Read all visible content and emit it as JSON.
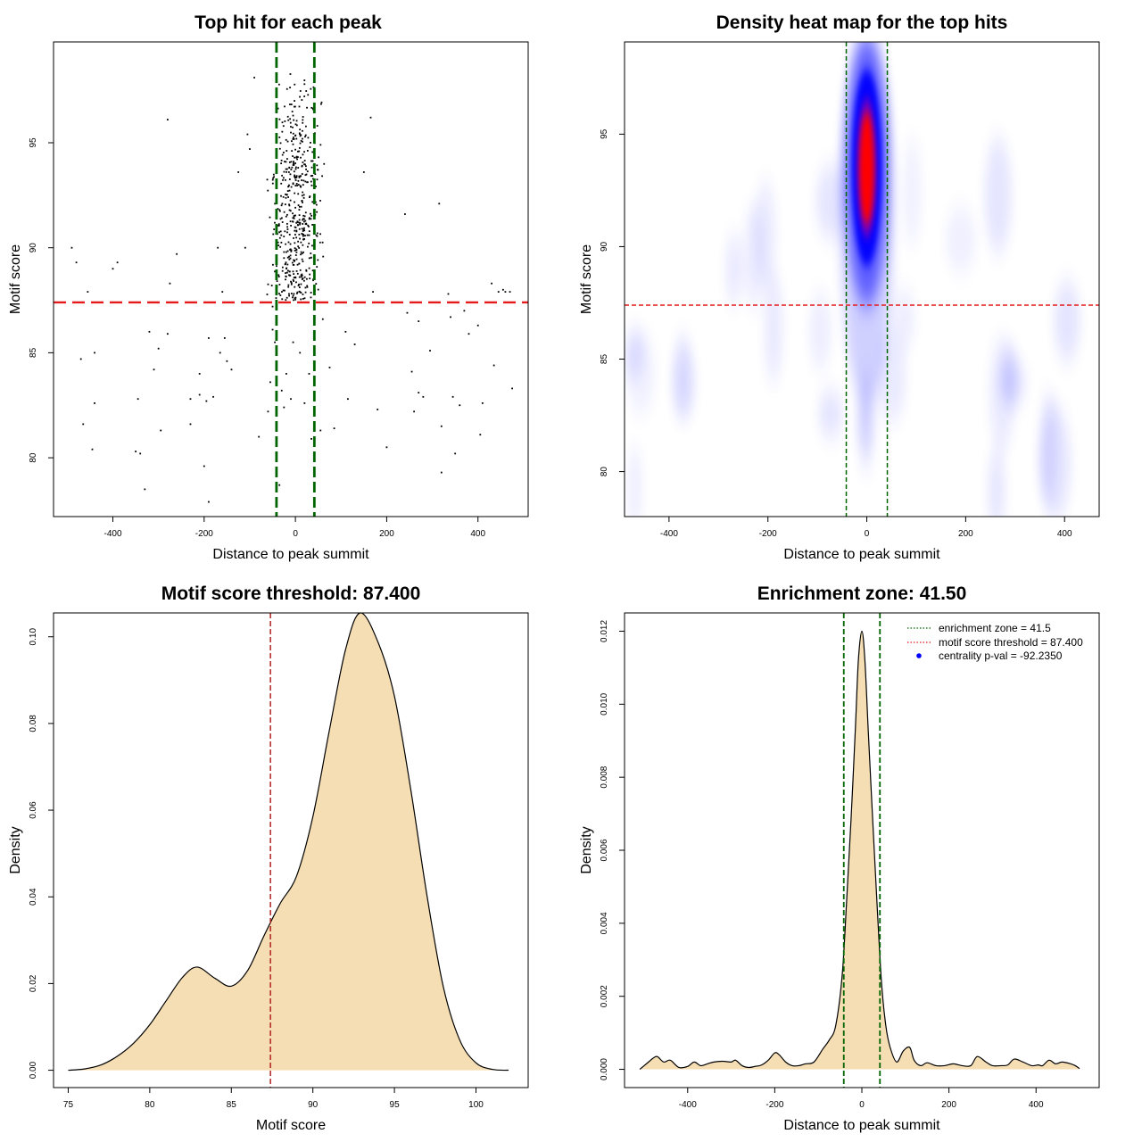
{
  "chart_data": [
    {
      "id": "scatter",
      "type": "scatter",
      "title": "Top hit for each peak",
      "xlabel": "Distance to peak summit",
      "ylabel": "Motif score",
      "xlim": [
        -530,
        510
      ],
      "ylim": [
        77.2,
        99.8
      ],
      "xticks": [
        "-400",
        "-200",
        "0",
        "200",
        "400"
      ],
      "yticks": [
        "80",
        "85",
        "90",
        "95"
      ],
      "x_tick_values": [
        -400,
        -200,
        0,
        200,
        400
      ],
      "y_tick_values": [
        80,
        85,
        90,
        95
      ],
      "hline": {
        "y": 87.4,
        "color": "#e41a1c"
      },
      "vlines": {
        "x": [
          -41.5,
          41.5
        ],
        "color": "#006400"
      },
      "point_color": "#000000",
      "points": [
        [
          -490,
          90.0
        ],
        [
          -480,
          89.3
        ],
        [
          -470,
          84.7
        ],
        [
          -465,
          81.6
        ],
        [
          -455,
          87.9
        ],
        [
          -440,
          85.0
        ],
        [
          -445,
          80.4
        ],
        [
          -440,
          82.6
        ],
        [
          -400,
          89.0
        ],
        [
          -390,
          89.3
        ],
        [
          -350,
          80.3
        ],
        [
          -340,
          80.2
        ],
        [
          -345,
          82.8
        ],
        [
          -330,
          78.5
        ],
        [
          -320,
          86.0
        ],
        [
          -310,
          84.2
        ],
        [
          -300,
          85.2
        ],
        [
          -295,
          81.3
        ],
        [
          -280,
          85.9
        ],
        [
          -275,
          88.3
        ],
        [
          -280,
          96.1
        ],
        [
          -260,
          89.7
        ],
        [
          -230,
          81.6
        ],
        [
          -230,
          82.8
        ],
        [
          -210,
          84.0
        ],
        [
          -210,
          83.0
        ],
        [
          -200,
          79.6
        ],
        [
          -195,
          82.7
        ],
        [
          -190,
          85.7
        ],
        [
          -190,
          77.9
        ],
        [
          -180,
          82.9
        ],
        [
          -170,
          90.0
        ],
        [
          -165,
          85.0
        ],
        [
          -160,
          87.9
        ],
        [
          -155,
          85.7
        ],
        [
          -150,
          84.6
        ],
        [
          -140,
          84.2
        ],
        [
          -125,
          93.6
        ],
        [
          -110,
          90.0
        ],
        [
          -105,
          95.4
        ],
        [
          -100,
          94.7
        ],
        [
          -90,
          98.1
        ],
        [
          -80,
          81.0
        ],
        [
          -60,
          82.2
        ],
        [
          -55,
          83.6
        ],
        [
          -50,
          87.2
        ],
        [
          -50,
          86.1
        ],
        [
          -45,
          85.5
        ],
        [
          -35,
          78.7
        ],
        [
          -30,
          83.2
        ],
        [
          -25,
          82.4
        ],
        [
          -20,
          84.0
        ],
        [
          -10,
          82.8
        ],
        [
          -5,
          85.5
        ],
        [
          10,
          85.0
        ],
        [
          20,
          82.6
        ],
        [
          30,
          84.0
        ],
        [
          35,
          80.9
        ],
        [
          55,
          81.3
        ],
        [
          60,
          86.6
        ],
        [
          75,
          84.3
        ],
        [
          85,
          81.4
        ],
        [
          110,
          86.0
        ],
        [
          115,
          82.8
        ],
        [
          130,
          85.4
        ],
        [
          150,
          93.6
        ],
        [
          165,
          96.2
        ],
        [
          170,
          87.9
        ],
        [
          180,
          82.3
        ],
        [
          200,
          80.5
        ],
        [
          240,
          91.6
        ],
        [
          245,
          86.9
        ],
        [
          255,
          84.1
        ],
        [
          260,
          82.2
        ],
        [
          270,
          86.5
        ],
        [
          270,
          83.1
        ],
        [
          280,
          82.9
        ],
        [
          295,
          85.1
        ],
        [
          315,
          92.1
        ],
        [
          320,
          79.3
        ],
        [
          320,
          81.5
        ],
        [
          335,
          87.8
        ],
        [
          340,
          86.7
        ],
        [
          345,
          82.9
        ],
        [
          350,
          80.2
        ],
        [
          360,
          82.5
        ],
        [
          370,
          87.0
        ],
        [
          380,
          85.9
        ],
        [
          400,
          86.3
        ],
        [
          405,
          81.1
        ],
        [
          410,
          82.6
        ],
        [
          430,
          88.3
        ],
        [
          435,
          84.4
        ],
        [
          445,
          87.9
        ],
        [
          455,
          88.0
        ],
        [
          460,
          87.9
        ],
        [
          470,
          87.9
        ],
        [
          475,
          83.3
        ]
      ]
    },
    {
      "id": "heatmap",
      "type": "heatmap",
      "title": "Density heat map for the top hits",
      "xlabel": "Distance to peak summit",
      "ylabel": "Motif score",
      "xlim": [
        -490,
        470
      ],
      "ylim": [
        78.0,
        99.1
      ],
      "xticks": [
        "-400",
        "-200",
        "0",
        "200",
        "400"
      ],
      "yticks": [
        "80",
        "85",
        "90",
        "95"
      ],
      "x_tick_values": [
        -400,
        -200,
        0,
        200,
        400
      ],
      "y_tick_values": [
        80,
        85,
        90,
        95
      ],
      "hline": {
        "y": 87.4,
        "color": "#e41a1c"
      },
      "vlines": {
        "x": [
          -41.5,
          41.5
        ],
        "color": "#006400"
      },
      "colors": [
        "#ffffff",
        "#0000ff",
        "#ff0000"
      ],
      "peak": {
        "x": 0,
        "y": 93.5
      }
    },
    {
      "id": "score_density",
      "type": "area",
      "title": "Motif score threshold: 87.400",
      "xlabel": "Motif score",
      "ylabel": "Density",
      "xlim": [
        74.1,
        103.2
      ],
      "ylim": [
        -0.004,
        0.1055
      ],
      "xticks": [
        "75",
        "80",
        "85",
        "90",
        "95",
        "100"
      ],
      "yticks": [
        "0.00",
        "0.02",
        "0.04",
        "0.06",
        "0.08",
        "0.10"
      ],
      "x_tick_values": [
        75,
        80,
        85,
        90,
        95,
        100
      ],
      "y_tick_values": [
        0,
        0.02,
        0.04,
        0.06,
        0.08,
        0.1
      ],
      "vline": {
        "x": 87.4,
        "color": "#b22222"
      },
      "fill": "#f5deb3",
      "x": [
        75,
        76,
        77,
        78,
        79,
        80,
        81,
        82,
        82.9,
        84,
        85,
        86,
        87,
        88,
        89,
        90,
        91,
        92,
        92.9,
        94,
        95,
        96,
        97,
        98,
        99,
        100,
        101,
        102
      ],
      "y": [
        0.0,
        0.0003,
        0.0012,
        0.0032,
        0.0062,
        0.0105,
        0.016,
        0.0214,
        0.0238,
        0.0212,
        0.0194,
        0.023,
        0.031,
        0.0385,
        0.0448,
        0.0585,
        0.0782,
        0.097,
        0.1055,
        0.0987,
        0.0863,
        0.0648,
        0.0402,
        0.0192,
        0.007,
        0.0017,
        0.0002,
        0.0
      ]
    },
    {
      "id": "distance_density",
      "type": "area",
      "title": "Enrichment zone: 41.50",
      "xlabel": "Distance to peak summit",
      "ylabel": "Density",
      "xlim": [
        -545,
        545
      ],
      "ylim": [
        -0.0005,
        0.0125
      ],
      "xticks": [
        "-400",
        "-200",
        "0",
        "200",
        "400"
      ],
      "yticks": [
        "0.000",
        "0.002",
        "0.004",
        "0.006",
        "0.008",
        "0.010",
        "0.012"
      ],
      "x_tick_values": [
        -400,
        -200,
        0,
        200,
        400
      ],
      "y_tick_values": [
        0,
        0.002,
        0.004,
        0.006,
        0.008,
        0.01,
        0.012
      ],
      "vlines": {
        "x": [
          -41.5,
          41.5
        ],
        "color": "#006400"
      },
      "fill": "#f5deb3",
      "legend_position": "top-right",
      "legend": [
        {
          "label": "enrichment zone = 41.5",
          "color": "#006400",
          "symbol": "dotted-line"
        },
        {
          "label": "motif score threshold = 87.400",
          "color": "#e41a1c",
          "symbol": "dotted-line"
        },
        {
          "label": "centrality p-val = -92.2350",
          "color": "#0000ff",
          "symbol": "point"
        }
      ],
      "x": [
        -510,
        -490,
        -480,
        -470,
        -455,
        -440,
        -420,
        -400,
        -385,
        -370,
        -355,
        -340,
        -320,
        -300,
        -290,
        -275,
        -260,
        -245,
        -230,
        -215,
        -200,
        -190,
        -175,
        -160,
        -145,
        -130,
        -110,
        -90,
        -75,
        -60,
        -45,
        -35,
        -25,
        -15,
        -8,
        0,
        7,
        15,
        25,
        35,
        45,
        55,
        65,
        80,
        95,
        110,
        120,
        135,
        150,
        170,
        190,
        210,
        230,
        250,
        265,
        285,
        300,
        320,
        335,
        350,
        370,
        390,
        405,
        415,
        430,
        445,
        460,
        480,
        490,
        500
      ],
      "y": [
        0.0,
        0.0002,
        0.0003,
        0.00035,
        0.0002,
        0.00025,
        5e-05,
        8e-05,
        0.0002,
        0.0001,
        0.00015,
        0.0002,
        0.00022,
        0.0002,
        0.00025,
        0.0001,
        5e-05,
        8e-05,
        0.00012,
        0.00025,
        0.00045,
        0.0004,
        0.0002,
        0.0001,
        0.0001,
        0.00015,
        0.0002,
        0.00055,
        0.0008,
        0.0012,
        0.0026,
        0.0046,
        0.0068,
        0.0093,
        0.0112,
        0.012,
        0.0112,
        0.0092,
        0.0068,
        0.0045,
        0.0024,
        0.0012,
        0.0006,
        0.0002,
        0.0005,
        0.0006,
        0.00025,
        0.0001,
        0.00018,
        0.0001,
        0.0001,
        0.00015,
        0.0001,
        0.0001,
        0.00035,
        0.0002,
        0.0001,
        0.0001,
        0.00012,
        0.00028,
        0.0002,
        0.0001,
        0.00012,
        0.0001,
        0.00025,
        0.00015,
        0.0002,
        0.00015,
        0.0001,
        2e-05
      ]
    }
  ]
}
